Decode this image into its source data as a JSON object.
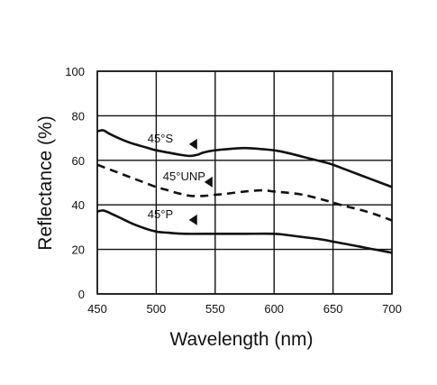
{
  "chart_data": {
    "type": "line",
    "title": "",
    "xlabel": "Wavelength (nm)",
    "ylabel": "Reflectance (%)",
    "xlim": [
      450,
      700
    ],
    "ylim": [
      0,
      100
    ],
    "x_ticks": [
      "450",
      "500",
      "550",
      "600",
      "650",
      "700"
    ],
    "y_ticks": [
      "0",
      "20",
      "40",
      "60",
      "80",
      "100"
    ],
    "grid": true,
    "legend": "none",
    "series": [
      {
        "name": "45°S",
        "style": "solid",
        "x": [
          450,
          455,
          460,
          470,
          480,
          490,
          500,
          510,
          520,
          528,
          535,
          540,
          550,
          560,
          575,
          590,
          600,
          610,
          625,
          640,
          650,
          660,
          675,
          690,
          700
        ],
        "y": [
          73,
          73.5,
          72,
          69.5,
          67.5,
          66,
          64.5,
          63.5,
          62.5,
          62,
          62.5,
          63.5,
          64.5,
          65,
          65.5,
          65,
          64.5,
          63.5,
          61.5,
          59.5,
          58,
          56,
          53,
          50,
          48
        ]
      },
      {
        "name": "45°UNP",
        "style": "dashed",
        "x": [
          450,
          460,
          470,
          480,
          490,
          500,
          510,
          520,
          530,
          540,
          550,
          560,
          575,
          590,
          600,
          610,
          625,
          640,
          650,
          660,
          675,
          690,
          700
        ],
        "y": [
          58,
          56,
          54,
          52,
          50,
          48,
          46.5,
          45,
          44,
          44,
          44.5,
          45,
          46,
          46.5,
          46,
          45.5,
          44.5,
          42.5,
          41,
          39.5,
          37.5,
          35,
          33
        ]
      },
      {
        "name": "45°P",
        "style": "solid",
        "x": [
          450,
          455,
          460,
          470,
          480,
          490,
          500,
          510,
          525,
          550,
          575,
          600,
          610,
          625,
          640,
          650,
          660,
          675,
          690,
          700
        ],
        "y": [
          37,
          37.5,
          36.5,
          34,
          31.5,
          29.5,
          28,
          27.5,
          27,
          27,
          27,
          27,
          26.5,
          25.5,
          24.5,
          23.5,
          22.5,
          21,
          19.5,
          18.5
        ]
      }
    ],
    "annotations": [
      {
        "text": "45°S",
        "series": "45°S",
        "x": 537,
        "y": 64
      },
      {
        "text": "45°UNP",
        "series": "45°UNP",
        "x": 550,
        "y": 47
      },
      {
        "text": "45°P",
        "series": "45°P",
        "x": 537,
        "y": 30
      }
    ],
    "colors": {
      "line": "#111111",
      "grid": "#111111"
    }
  }
}
